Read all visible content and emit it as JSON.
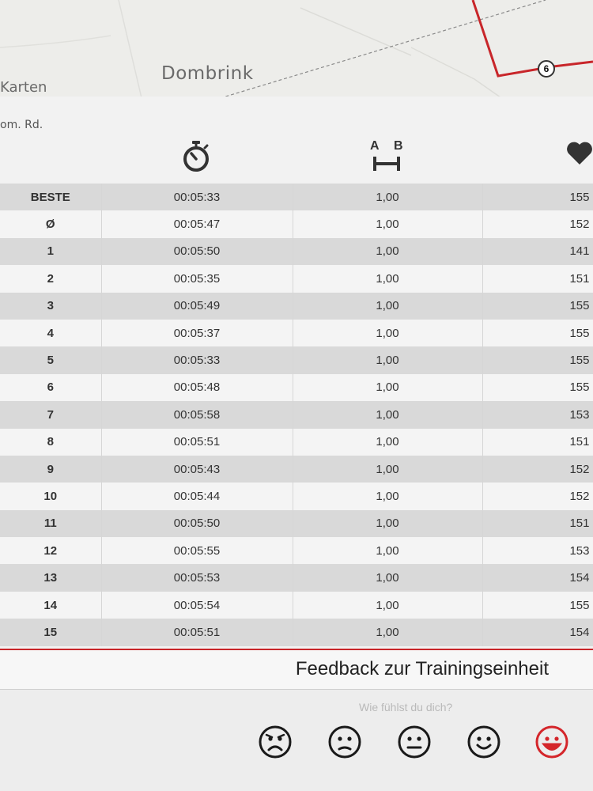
{
  "map": {
    "labels": {
      "karten": "Karten",
      "dombrink": "Dombrink",
      "road": "om. Rd."
    },
    "marker": "6",
    "route_color": "#c8262a"
  },
  "header": {
    "icons": [
      "stopwatch-icon",
      "distance-ab-icon",
      "heart-icon"
    ],
    "distance_icon_letters": {
      "a": "A",
      "b": "B"
    }
  },
  "laps": [
    {
      "lap": "BESTE",
      "time": "00:05:33",
      "distance": "1,00",
      "hr": "155"
    },
    {
      "lap": "Ø",
      "time": "00:05:47",
      "distance": "1,00",
      "hr": "152"
    },
    {
      "lap": "1",
      "time": "00:05:50",
      "distance": "1,00",
      "hr": "141"
    },
    {
      "lap": "2",
      "time": "00:05:35",
      "distance": "1,00",
      "hr": "151"
    },
    {
      "lap": "3",
      "time": "00:05:49",
      "distance": "1,00",
      "hr": "155"
    },
    {
      "lap": "4",
      "time": "00:05:37",
      "distance": "1,00",
      "hr": "155"
    },
    {
      "lap": "5",
      "time": "00:05:33",
      "distance": "1,00",
      "hr": "155"
    },
    {
      "lap": "6",
      "time": "00:05:48",
      "distance": "1,00",
      "hr": "155"
    },
    {
      "lap": "7",
      "time": "00:05:58",
      "distance": "1,00",
      "hr": "153"
    },
    {
      "lap": "8",
      "time": "00:05:51",
      "distance": "1,00",
      "hr": "151"
    },
    {
      "lap": "9",
      "time": "00:05:43",
      "distance": "1,00",
      "hr": "152"
    },
    {
      "lap": "10",
      "time": "00:05:44",
      "distance": "1,00",
      "hr": "152"
    },
    {
      "lap": "11",
      "time": "00:05:50",
      "distance": "1,00",
      "hr": "151"
    },
    {
      "lap": "12",
      "time": "00:05:55",
      "distance": "1,00",
      "hr": "153"
    },
    {
      "lap": "13",
      "time": "00:05:53",
      "distance": "1,00",
      "hr": "154"
    },
    {
      "lap": "14",
      "time": "00:05:54",
      "distance": "1,00",
      "hr": "155"
    },
    {
      "lap": "15",
      "time": "00:05:51",
      "distance": "1,00",
      "hr": "154"
    }
  ],
  "feedback": {
    "title": "Feedback zur Trainingseinheit",
    "question": "Wie fühlst du dich?",
    "options": [
      {
        "name": "very-sad-face-icon",
        "selected": false
      },
      {
        "name": "sad-face-icon",
        "selected": false
      },
      {
        "name": "neutral-face-icon",
        "selected": false
      },
      {
        "name": "happy-face-icon",
        "selected": false
      },
      {
        "name": "very-happy-face-icon",
        "selected": true
      }
    ],
    "selected_color": "#d4262b",
    "default_color": "#1a1a1a"
  }
}
